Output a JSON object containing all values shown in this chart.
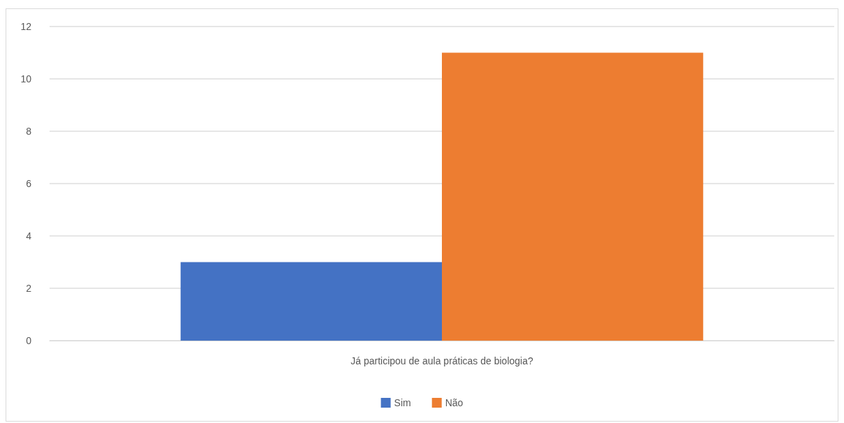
{
  "chart_data": {
    "type": "bar",
    "categories": [
      "Já participou de aula práticas de biologia?"
    ],
    "series": [
      {
        "name": "Sim",
        "color": "#4472c4",
        "values": [
          3
        ]
      },
      {
        "name": "Não",
        "color": "#ed7d31",
        "values": [
          11
        ]
      }
    ],
    "ylim": [
      0,
      12
    ],
    "yticks": [
      0,
      2,
      4,
      6,
      8,
      10,
      12
    ],
    "grid": "y",
    "legend": "bottom"
  }
}
